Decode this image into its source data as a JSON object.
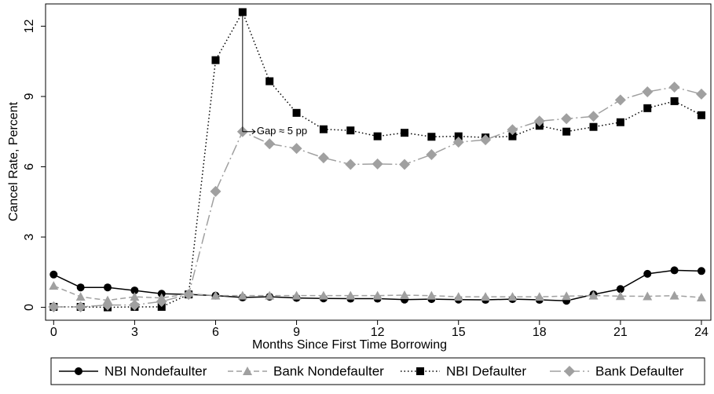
{
  "chart_data": {
    "type": "line",
    "xlabel": "Months Since First Time Borrowing",
    "ylabel": "Cancel Rate, Percent",
    "x": [
      0,
      1,
      2,
      3,
      4,
      5,
      6,
      7,
      8,
      9,
      10,
      11,
      12,
      13,
      14,
      15,
      16,
      17,
      18,
      19,
      20,
      21,
      22,
      23,
      24
    ],
    "xlim": [
      -0.3,
      24.35
    ],
    "xticks": [
      0,
      3,
      6,
      9,
      12,
      15,
      18,
      21,
      24
    ],
    "ylim": [
      -0.55,
      12.95
    ],
    "yticks": [
      0,
      3,
      6,
      9,
      12
    ],
    "legend": "bottom",
    "series": [
      {
        "name": "NBI Nondefaulter",
        "color": "#000000",
        "marker": "circle",
        "dash": "none",
        "values": [
          1.4,
          0.85,
          0.85,
          0.72,
          0.58,
          0.55,
          0.5,
          0.42,
          0.45,
          0.4,
          0.38,
          0.37,
          0.37,
          0.33,
          0.35,
          0.33,
          0.32,
          0.35,
          0.32,
          0.28,
          0.55,
          0.78,
          1.43,
          1.58,
          1.55
        ]
      },
      {
        "name": "Bank Nondefaulter",
        "color": "#a0a0a0",
        "marker": "triangle",
        "dash": "7 4",
        "values": [
          0.92,
          0.45,
          0.3,
          0.45,
          0.4,
          0.58,
          0.5,
          0.5,
          0.5,
          0.5,
          0.5,
          0.5,
          0.5,
          0.52,
          0.5,
          0.45,
          0.45,
          0.45,
          0.45,
          0.48,
          0.5,
          0.48,
          0.47,
          0.5,
          0.42
        ]
      },
      {
        "name": "NBI Defaulter",
        "color": "#000000",
        "marker": "square",
        "dash": "1.5 3",
        "values": [
          0.02,
          0.02,
          0,
          0.02,
          0.02,
          0.55,
          10.55,
          12.6,
          9.65,
          8.3,
          7.6,
          7.55,
          7.3,
          7.45,
          7.28,
          7.3,
          7.25,
          7.3,
          7.75,
          7.5,
          7.7,
          7.9,
          8.5,
          8.8,
          8.2
        ]
      },
      {
        "name": "Bank Defaulter",
        "color": "#a0a0a0",
        "marker": "diamond",
        "dash": "14 4 2 4",
        "values": [
          0.02,
          0.02,
          0.1,
          0.1,
          0.25,
          0.55,
          4.95,
          7.5,
          6.98,
          6.78,
          6.38,
          6.1,
          6.12,
          6.1,
          6.52,
          7.05,
          7.15,
          7.58,
          7.95,
          8.05,
          8.15,
          8.85,
          9.2,
          9.4,
          9.1
        ]
      }
    ],
    "annotation": {
      "text": "Gap ≈ 5 pp",
      "x": 7
    }
  }
}
